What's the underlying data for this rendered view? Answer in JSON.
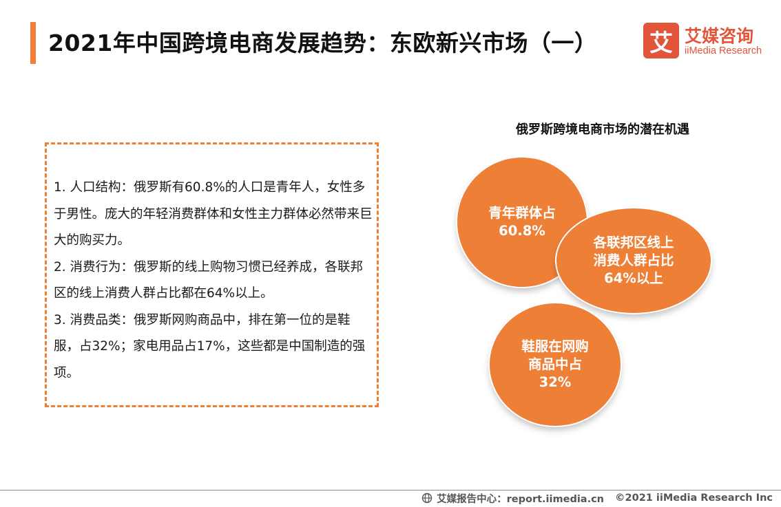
{
  "header": {
    "title": "2021年中国跨境电商发展趋势：东欧新兴市场（一）",
    "accent_color": "#ee7f36"
  },
  "logo": {
    "mark": "艾",
    "name_cn": "艾媒咨询",
    "name_en": "iiMedia Research",
    "color": "#e2553a"
  },
  "textbox": {
    "points": [
      "1. 人口结构：俄罗斯有60.8%的人口是青年人，女性多于男性。庞大的年轻消费群体和女性主力群体必然带来巨大的购买力。",
      "2. 消费行为：俄罗斯的线上购物习惯已经养成，各联邦区的线上消费人群占比都在64%以上。",
      "3. 消费品类：俄罗斯网购商品中，排在第一位的是鞋服，占32%；家电用品占17%，这些都是中国制造的强项。"
    ]
  },
  "diagram": {
    "title": "俄罗斯跨境电商市场的潜在机遇",
    "circles": [
      {
        "line1": "青年群体占",
        "line2": "60.8%",
        "line3": ""
      },
      {
        "line1": "各联邦区线上",
        "line2": "消费人群占比",
        "line3": "64%以上"
      },
      {
        "line1": "鞋服在网购",
        "line2": "商品中占",
        "line3": "32%"
      }
    ],
    "circle_color": "#ee7f36"
  },
  "footer": {
    "icon": "globe-icon",
    "source": "艾媒报告中心：report.iimedia.cn",
    "copyright": "©2021  iiMedia Research  Inc"
  }
}
